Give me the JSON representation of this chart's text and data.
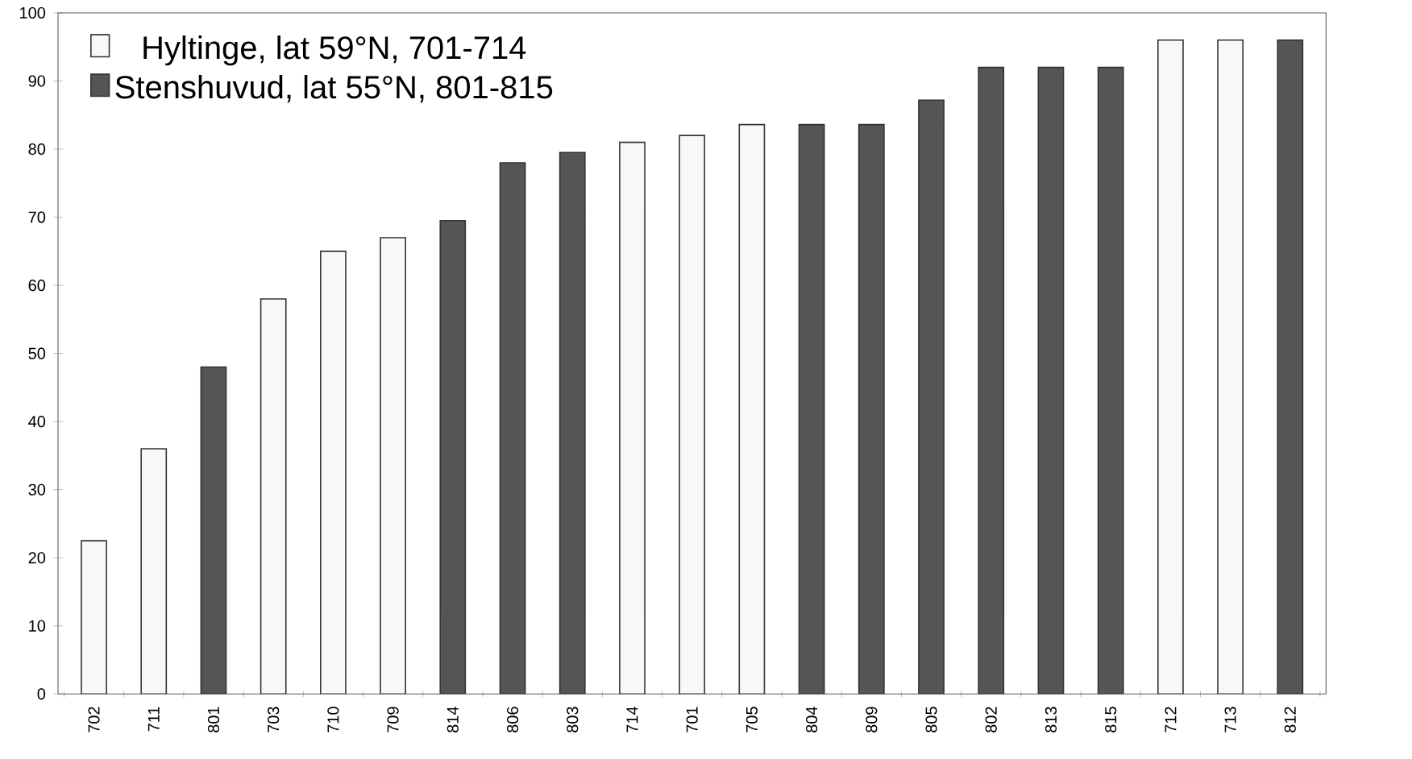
{
  "chart_data": {
    "type": "bar",
    "categories": [
      "702",
      "711",
      "801",
      "703",
      "710",
      "709",
      "814",
      "806",
      "803",
      "714",
      "701",
      "705",
      "804",
      "809",
      "805",
      "802",
      "813",
      "815",
      "712",
      "713",
      "812"
    ],
    "series": [
      {
        "name": "Hyltinge, lat 59°N, 701-714",
        "color": "#f8f8f8",
        "values": [
          22.5,
          36,
          null,
          58,
          65,
          67,
          null,
          null,
          null,
          81,
          82,
          83.6,
          null,
          null,
          null,
          null,
          null,
          null,
          96,
          96,
          null
        ]
      },
      {
        "name": "Stenshuvud, lat 55°N, 801-815",
        "color": "#555555",
        "values": [
          null,
          null,
          48,
          null,
          null,
          null,
          69.5,
          78,
          79.5,
          null,
          null,
          null,
          83.6,
          83.6,
          87.2,
          92,
          92,
          92,
          null,
          null,
          96
        ]
      }
    ],
    "ylim": [
      0,
      100
    ],
    "yticks": [
      0,
      10,
      20,
      30,
      40,
      50,
      60,
      70,
      80,
      90,
      100
    ],
    "grid": false,
    "legend": "top left"
  }
}
